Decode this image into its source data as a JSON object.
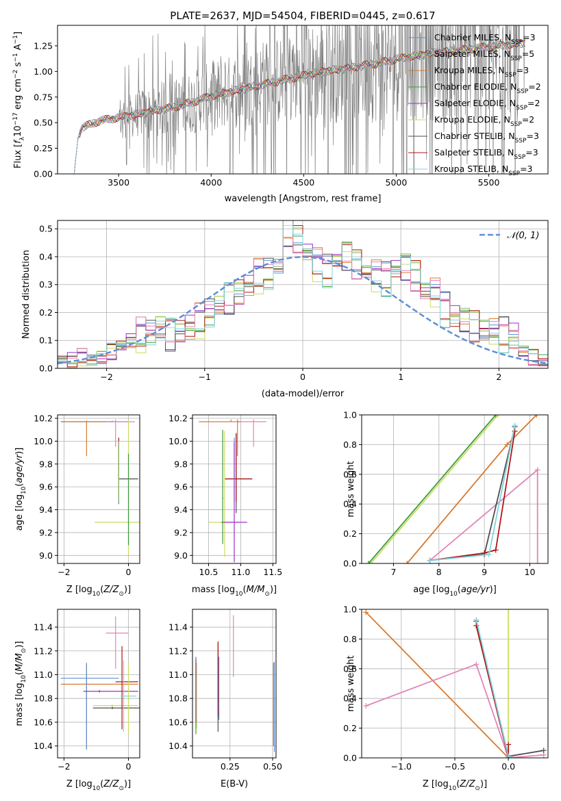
{
  "chart_data": [
    {
      "id": "spectrum",
      "type": "line",
      "title": "PLATE=2637, MJD=54504, FIBERID=0445, z=0.617",
      "xlabel": "wavelength [Angstrom, rest frame]",
      "ylabel": "Flux [f_λ 10^-17 erg cm^-2 s^-1 A^-1]",
      "xlim": [
        3170,
        5820
      ],
      "ylim": [
        0,
        1.45
      ],
      "xticks": [
        3500,
        4000,
        4500,
        5000,
        5500
      ],
      "yticks": [
        0.0,
        0.25,
        0.5,
        0.75,
        1.0,
        1.25
      ],
      "legend_position": "top-right",
      "data_envelope": {
        "x": [
          3260,
          3280,
          3300,
          3400,
          3500,
          3600,
          3700,
          3800,
          3900,
          4000,
          4100,
          4200,
          4300,
          4400,
          4500,
          4600,
          4700,
          4800,
          4900,
          5000,
          5100,
          5200,
          5300,
          5400,
          5500,
          5600,
          5700
        ],
        "y": [
          0.0,
          0.35,
          0.45,
          0.52,
          0.55,
          0.58,
          0.62,
          0.65,
          0.7,
          0.76,
          0.8,
          0.84,
          0.88,
          0.92,
          0.96,
          1.0,
          1.02,
          1.05,
          1.08,
          1.12,
          1.15,
          1.18,
          1.2,
          1.22,
          1.24,
          1.26,
          1.28
        ]
      },
      "legend": [
        "Chabrier MILES, N_SSP=3",
        "Salpeter MILES, N_SSP=5",
        "Kroupa MILES, N_SSP=3",
        "Chabrier ELODIE, N_SSP=2",
        "Salpeter ELODIE, N_SSP=2",
        "Kroupa ELODIE, N_SSP=2",
        "Chabrier STELIB, N_SSP=3",
        "Salpeter STELIB, N_SSP=3",
        "Kroupa STELIB, N_SSP=3"
      ]
    },
    {
      "id": "residuals",
      "type": "line",
      "xlabel": "(data-model)/error",
      "ylabel": "Normed distribution",
      "xlim": [
        -2.5,
        2.5
      ],
      "ylim": [
        0,
        0.53
      ],
      "xticks": [
        -2,
        -1,
        0,
        1,
        2
      ],
      "yticks": [
        0.0,
        0.1,
        0.2,
        0.3,
        0.4,
        0.5
      ],
      "legend": [
        "𝒩(0, 1)"
      ],
      "histogram_bins": 50,
      "histogram_values": [
        0.03,
        0.03,
        0.04,
        0.03,
        0.04,
        0.06,
        0.08,
        0.1,
        0.12,
        0.13,
        0.15,
        0.12,
        0.13,
        0.15,
        0.17,
        0.2,
        0.23,
        0.25,
        0.27,
        0.3,
        0.33,
        0.34,
        0.37,
        0.49,
        0.46,
        0.42,
        0.37,
        0.35,
        0.39,
        0.4,
        0.37,
        0.35,
        0.33,
        0.32,
        0.36,
        0.36,
        0.33,
        0.28,
        0.27,
        0.21,
        0.19,
        0.17,
        0.15,
        0.14,
        0.13,
        0.12,
        0.12,
        0.06,
        0.04,
        0.03
      ]
    },
    {
      "id": "age-vs-z",
      "type": "scatter",
      "xlabel": "Z [log10(Z/Z⊙)]",
      "ylabel": "age  [log10(age/yr)]",
      "xlim": [
        -2.2,
        0.35
      ],
      "ylim": [
        8.93,
        10.23
      ],
      "xticks": [
        -2,
        0
      ],
      "yticks": [
        9.0,
        9.2,
        9.4,
        9.6,
        9.8,
        10.0,
        10.2
      ],
      "points": [
        {
          "x": -0.5,
          "y": 10.17,
          "xerr": [
            1.6,
            0.5
          ],
          "yerr": [
            0,
            0.01
          ],
          "c": 0
        },
        {
          "x": -1.3,
          "y": 10.17,
          "xerr": [
            0.8,
            0.8
          ],
          "yerr": [
            0.3,
            0.01
          ],
          "c": 2
        },
        {
          "x": -0.4,
          "y": 10.17,
          "xerr": [
            0.3,
            0.6
          ],
          "yerr": [
            0.22,
            0.02
          ],
          "c": 8
        },
        {
          "x": -0.3,
          "y": 9.67,
          "xerr": [
            0.01,
            0.6
          ],
          "yerr": [
            0.22,
            0.36
          ],
          "c": 6
        },
        {
          "x": -0.3,
          "y": 9.67,
          "xerr": [
            0.01,
            0.01
          ],
          "yerr": [
            0.01,
            0.36
          ],
          "c": 7
        },
        {
          "x": -0.3,
          "y": 9.67,
          "xerr": [
            0.01,
            0.01
          ],
          "yerr": [
            0.22,
            0.33
          ],
          "c": 0
        },
        {
          "x": -0.3,
          "y": 9.67,
          "xerr": [
            0.01,
            0.01
          ],
          "yerr": [
            0.2,
            0.33
          ],
          "c": 1
        },
        {
          "x": 0.0,
          "y": 9.29,
          "xerr": [
            1.05,
            0.35
          ],
          "yerr": [
            0.29,
            0.9
          ],
          "c": 5
        },
        {
          "x": 0.0,
          "y": 9.29,
          "xerr": [
            0.01,
            0.01
          ],
          "yerr": [
            0.2,
            0.6
          ],
          "c": 3
        }
      ]
    },
    {
      "id": "age-vs-mass",
      "type": "scatter",
      "xlabel": "mass [log10(M/M⊙)]",
      "ylabel": "",
      "xlim": [
        10.25,
        11.55
      ],
      "ylim": [
        8.93,
        10.23
      ],
      "xticks": [
        10.5,
        11.0,
        11.5
      ],
      "yticks": [
        9.0,
        9.2,
        9.4,
        9.6,
        9.8,
        10.0,
        10.2
      ],
      "points": [
        {
          "x": 10.85,
          "y": 10.17,
          "xerr": [
            0.5,
            0.1
          ],
          "yerr": [
            0,
            0.02
          ],
          "c": 2
        },
        {
          "x": 11.2,
          "y": 10.17,
          "xerr": [
            0.35,
            0.2
          ],
          "yerr": [
            0.22,
            0.02
          ],
          "c": 8
        },
        {
          "x": 10.95,
          "y": 10.17,
          "xerr": [
            0.01,
            0.05
          ],
          "yerr": [
            0.3,
            0.02
          ],
          "c": 2
        },
        {
          "x": 10.93,
          "y": 9.67,
          "xerr": [
            0.18,
            0.25
          ],
          "yerr": [
            0.3,
            0.4
          ],
          "c": 6
        },
        {
          "x": 10.93,
          "y": 9.67,
          "xerr": [
            0.18,
            0.25
          ],
          "yerr": [
            0.2,
            0.4
          ],
          "c": 7
        },
        {
          "x": 10.9,
          "y": 9.67,
          "xerr": [
            0.01,
            0.01
          ],
          "yerr": [
            0.2,
            0.36
          ],
          "c": 0
        },
        {
          "x": 10.75,
          "y": 9.29,
          "xerr": [
            0.25,
            0.25
          ],
          "yerr": [
            0.3,
            0.8
          ],
          "c": 5
        },
        {
          "x": 10.9,
          "y": 9.29,
          "xerr": [
            0.2,
            0.2
          ],
          "yerr": [
            0.35,
            0.7
          ],
          "c": 4
        },
        {
          "x": 10.72,
          "y": 9.5,
          "xerr": [
            0.01,
            0.01
          ],
          "yerr": [
            0.4,
            0.6
          ],
          "c": 3
        }
      ]
    },
    {
      "id": "weight-vs-age",
      "type": "line",
      "xlabel": "age  [log10(age/yr)]",
      "ylabel": "mass weight",
      "xlim": [
        6.3,
        10.4
      ],
      "ylim": [
        0,
        1.0
      ],
      "xticks": [
        7,
        8,
        9,
        10
      ],
      "yticks": [
        0.0,
        0.2,
        0.4,
        0.6,
        0.8,
        1.0
      ],
      "series": [
        {
          "c": 2,
          "x": [
            7.3,
            9.5,
            10.15
          ],
          "y": [
            0.0,
            0.8,
            1.0
          ]
        },
        {
          "c": 5,
          "x": [
            6.5,
            9.3
          ],
          "y": [
            0.0,
            1.0
          ]
        },
        {
          "c": 3,
          "x": [
            6.45,
            9.25
          ],
          "y": [
            0.0,
            1.0
          ]
        },
        {
          "c": 8,
          "x": [
            7.8,
            10.17,
            10.17
          ],
          "y": [
            0.02,
            0.63,
            0.0
          ]
        },
        {
          "c": 6,
          "x": [
            7.8,
            9.0,
            9.67
          ],
          "y": [
            0.02,
            0.06,
            0.92
          ]
        },
        {
          "c": 7,
          "x": [
            7.8,
            9.0,
            9.25,
            9.67
          ],
          "y": [
            0.02,
            0.07,
            0.09,
            0.89
          ]
        },
        {
          "c": 9,
          "x": [
            7.8,
            9.1,
            9.67
          ],
          "y": [
            0.02,
            0.06,
            0.93
          ]
        }
      ]
    },
    {
      "id": "mass-vs-z",
      "type": "scatter",
      "xlabel": "Z [log10(Z/Z⊙)]",
      "ylabel": "mass [log10(M/M⊙)]",
      "xlim": [
        -2.2,
        0.35
      ],
      "ylim": [
        10.3,
        11.55
      ],
      "xticks": [
        -2,
        0
      ],
      "yticks": [
        10.4,
        10.6,
        10.8,
        11.0,
        11.2,
        11.4
      ],
      "points": [
        {
          "x": -1.3,
          "y": 10.92,
          "xerr": [
            0.8,
            1.6
          ],
          "yerr": [
            0.55,
            0.18
          ],
          "c": 2
        },
        {
          "x": -1.3,
          "y": 10.97,
          "xerr": [
            0.8,
            1.0
          ],
          "yerr": [
            0.6,
            0.12
          ],
          "c": 0
        },
        {
          "x": -0.9,
          "y": 10.86,
          "xerr": [
            0.5,
            1.2
          ],
          "yerr": [
            0.01,
            0.01
          ],
          "c": 4
        },
        {
          "x": -0.5,
          "y": 10.72,
          "xerr": [
            0.6,
            1.0
          ],
          "yerr": [
            0.01,
            0.01
          ],
          "c": 6
        },
        {
          "x": -0.5,
          "y": 10.74,
          "xerr": [
            0.6,
            0.8
          ],
          "yerr": [
            0.01,
            0.01
          ],
          "c": 5
        },
        {
          "x": -0.2,
          "y": 10.94,
          "xerr": [
            0.2,
            0.5
          ],
          "yerr": [
            0.4,
            0.3
          ],
          "c": 7
        },
        {
          "x": -0.4,
          "y": 11.35,
          "xerr": [
            0.3,
            0.4
          ],
          "yerr": [
            0.3,
            0.14
          ],
          "c": 8
        },
        {
          "x": -0.15,
          "y": 10.82,
          "xerr": [
            0.1,
            0.4
          ],
          "yerr": [
            0.3,
            0.3
          ],
          "c": 9
        },
        {
          "x": 0.0,
          "y": 10.9,
          "xerr": [
            0.01,
            0.01
          ],
          "yerr": [
            0.4,
            0.2
          ],
          "c": 5
        }
      ]
    },
    {
      "id": "mass-vs-ebv",
      "type": "scatter",
      "xlabel": "E(B-V)",
      "ylabel": "",
      "xlim": [
        0.03,
        0.52
      ],
      "ylim": [
        10.3,
        11.55
      ],
      "xticks": [
        0.25,
        0.5
      ],
      "yticks": [
        10.4,
        10.6,
        10.8,
        11.0,
        11.2,
        11.4
      ],
      "points": [
        {
          "x": 0.05,
          "y": 10.85,
          "xerr": [
            0,
            0
          ],
          "yerr": [
            0.35,
            0.3
          ],
          "c": 3
        },
        {
          "x": 0.055,
          "y": 10.85,
          "xerr": [
            0,
            0
          ],
          "yerr": [
            0.3,
            0.25
          ],
          "c": 5
        },
        {
          "x": 0.05,
          "y": 10.85,
          "xerr": [
            0,
            0
          ],
          "yerr": [
            0.25,
            0.28
          ],
          "c": 4
        },
        {
          "x": 0.18,
          "y": 10.9,
          "xerr": [
            0,
            0
          ],
          "yerr": [
            0.38,
            0.36
          ],
          "c": 6
        },
        {
          "x": 0.185,
          "y": 10.9,
          "xerr": [
            0,
            0
          ],
          "yerr": [
            0.28,
            0.25
          ],
          "c": 0
        },
        {
          "x": 0.18,
          "y": 10.95,
          "xerr": [
            0,
            0
          ],
          "yerr": [
            0.3,
            0.33
          ],
          "c": 7
        },
        {
          "x": 0.27,
          "y": 11.2,
          "xerr": [
            0,
            0
          ],
          "yerr": [
            0.22,
            0.3
          ],
          "c": 8
        },
        {
          "x": 0.505,
          "y": 10.75,
          "xerr": [
            0,
            0
          ],
          "yerr": [
            0.35,
            0.35
          ],
          "c": 2
        },
        {
          "x": 0.51,
          "y": 10.75,
          "xerr": [
            0,
            0
          ],
          "yerr": [
            0.4,
            0.36
          ],
          "c": 0
        }
      ]
    },
    {
      "id": "weight-vs-z",
      "type": "line",
      "xlabel": "Z [log10(Z/Z⊙)]",
      "ylabel": "mass weight",
      "xlim": [
        -1.37,
        0.37
      ],
      "ylim": [
        0,
        1.0
      ],
      "xticks": [
        -1.0,
        -0.5,
        0.0
      ],
      "yticks": [
        0.0,
        0.2,
        0.4,
        0.6,
        0.8,
        1.0
      ],
      "series": [
        {
          "c": 2,
          "x": [
            -1.33,
            0.0
          ],
          "y": [
            0.98,
            0.0
          ]
        },
        {
          "c": 8,
          "x": [
            -1.33,
            -0.3,
            0.0,
            0.33
          ],
          "y": [
            0.35,
            0.63,
            0.0,
            0.02
          ]
        },
        {
          "c": 5,
          "x": [
            0.0,
            0.0
          ],
          "y": [
            0.0,
            1.0
          ]
        },
        {
          "c": 6,
          "x": [
            -0.3,
            0.0,
            0.33
          ],
          "y": [
            0.92,
            0.01,
            0.05
          ]
        },
        {
          "c": 7,
          "x": [
            -0.3,
            0.0,
            0.0
          ],
          "y": [
            0.89,
            0.0,
            0.09
          ]
        },
        {
          "c": 9,
          "x": [
            -0.3,
            0.0
          ],
          "y": [
            0.93,
            0.01
          ]
        }
      ]
    }
  ],
  "colors": [
    "#5b8fd6",
    "#8cb85a",
    "#d87a2e",
    "#3d9a3d",
    "#9b30c4",
    "#c9dc5e",
    "#4d4d4d",
    "#b01515",
    "#e383b8",
    "#7fd3dc"
  ],
  "gauss_color": "#5b8fd6"
}
